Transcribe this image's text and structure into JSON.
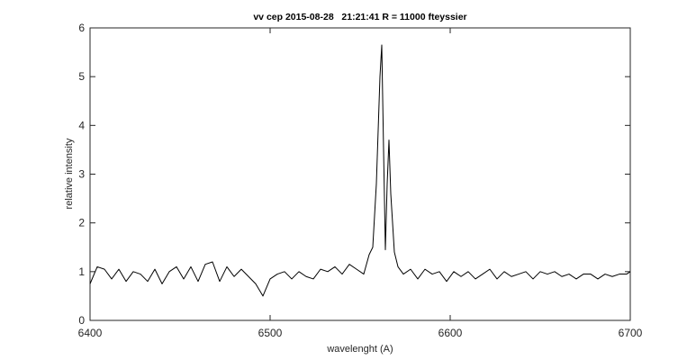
{
  "chart_data": {
    "type": "line",
    "title": "vv cep 2015-08-28   21:21:41 R = 11000 fteyssier",
    "x_label": "wavelenght (A)",
    "y_label": "relative intensity",
    "x": [
      6400,
      6404,
      6408,
      6412,
      6416,
      6420,
      6424,
      6428,
      6432,
      6436,
      6440,
      6444,
      6448,
      6452,
      6456,
      6460,
      6464,
      6468,
      6472,
      6476,
      6480,
      6484,
      6488,
      6492,
      6496,
      6500,
      6504,
      6508,
      6512,
      6516,
      6520,
      6524,
      6528,
      6532,
      6536,
      6540,
      6544,
      6548,
      6552,
      6555,
      6557,
      6559,
      6561,
      6562,
      6563,
      6564,
      6565,
      6566,
      6567,
      6569,
      6571,
      6574,
      6578,
      6582,
      6586,
      6590,
      6594,
      6598,
      6602,
      6606,
      6610,
      6614,
      6618,
      6622,
      6626,
      6630,
      6634,
      6638,
      6642,
      6646,
      6650,
      6654,
      6658,
      6662,
      6666,
      6670,
      6674,
      6678,
      6682,
      6686,
      6690,
      6694,
      6698,
      6700
    ],
    "series": [
      {
        "color": "#000000",
        "values": [
          0.75,
          1.1,
          1.05,
          0.85,
          1.05,
          0.8,
          1.0,
          0.95,
          0.8,
          1.05,
          0.75,
          1.0,
          1.1,
          0.85,
          1.1,
          0.8,
          1.15,
          1.2,
          0.8,
          1.1,
          0.9,
          1.05,
          0.9,
          0.75,
          0.5,
          0.85,
          0.95,
          1.0,
          0.85,
          1.0,
          0.9,
          0.85,
          1.05,
          1.0,
          1.1,
          0.95,
          1.15,
          1.05,
          0.95,
          1.35,
          1.5,
          2.8,
          5.0,
          5.65,
          3.5,
          1.45,
          2.8,
          3.7,
          2.6,
          1.4,
          1.1,
          0.95,
          1.05,
          0.85,
          1.05,
          0.95,
          1.0,
          0.8,
          1.0,
          0.9,
          1.0,
          0.85,
          0.95,
          1.05,
          0.85,
          1.0,
          0.9,
          0.95,
          1.0,
          0.85,
          1.0,
          0.95,
          1.0,
          0.9,
          0.95,
          0.85,
          0.95,
          0.95,
          0.85,
          0.95,
          0.9,
          0.95,
          0.95,
          1.0
        ]
      }
    ],
    "xlim": [
      6400,
      6700
    ],
    "xticks": [
      6400,
      6500,
      6600,
      6700
    ],
    "ylim": [
      0,
      6
    ],
    "yticks": [
      0,
      1,
      2,
      3,
      4,
      5,
      6
    ],
    "grid": false
  }
}
